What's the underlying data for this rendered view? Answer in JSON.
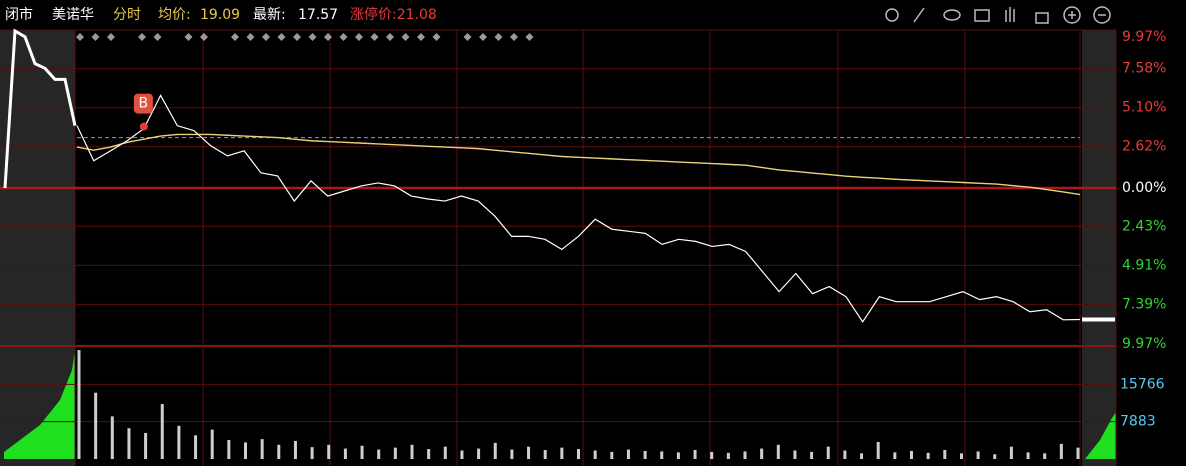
{
  "header": {
    "status": "闭市",
    "name": "美诺华",
    "mode": "分时",
    "avg_label": "均价:",
    "avg_value": 19.09,
    "last_label": "最新:",
    "last_value": 17.57,
    "limit": "涨停价:21.08"
  },
  "chart_data": [
    {
      "type": "line",
      "categories": [
        null,
        null,
        null,
        null,
        null,
        null,
        null,
        null,
        null,
        null,
        null,
        null,
        null,
        null,
        null,
        null,
        null,
        null,
        null,
        null,
        null,
        null,
        null,
        null,
        null,
        null,
        null,
        null,
        null,
        null,
        null,
        null,
        null,
        null,
        null,
        null,
        null,
        null,
        null,
        null,
        null,
        null,
        null,
        null,
        null,
        null,
        null,
        null,
        null,
        null,
        null,
        null,
        null,
        null,
        null,
        null,
        null,
        null,
        null,
        null,
        null
      ],
      "series": [
        {
          "color": "#ffffff",
          "values": [
            3.96,
            1.73,
            2.36,
            3.0,
            3.77,
            5.88,
            3.96,
            3.64,
            2.68,
            2.04,
            2.36,
            0.96,
            0.77,
            -0.83,
            0.45,
            -0.51,
            -0.19,
            0.13,
            0.32,
            0.13,
            -0.51,
            -0.7,
            -0.83,
            -0.51,
            -0.83,
            -1.79,
            -3.07,
            -3.07,
            -3.26,
            -3.9,
            -3.07,
            -1.98,
            -2.62,
            -2.75,
            -2.88,
            -3.58,
            -3.26,
            -3.39,
            -3.71,
            -3.58,
            -4.03,
            -5.3,
            -6.58,
            -5.43,
            -6.71,
            -6.26,
            -6.9,
            -8.5,
            -6.9,
            -7.22,
            -7.22,
            -7.22,
            -6.9,
            -6.58,
            -7.09,
            -6.9,
            -7.22,
            -7.86,
            -7.73,
            -8.37,
            -8.35
          ]
        },
        {
          "color": "#e8d27a",
          "values": [
            2.6,
            2.4,
            2.6,
            2.9,
            3.1,
            3.3,
            3.4,
            3.4,
            3.4,
            3.35,
            3.3,
            3.25,
            3.2,
            3.1,
            3.0,
            2.95,
            2.9,
            2.85,
            2.8,
            2.75,
            2.7,
            2.65,
            2.6,
            2.55,
            2.5,
            2.4,
            2.3,
            2.2,
            2.1,
            2.0,
            1.95,
            1.9,
            1.85,
            1.8,
            1.75,
            1.7,
            1.65,
            1.6,
            1.55,
            1.5,
            1.45,
            1.3,
            1.15,
            1.05,
            0.95,
            0.85,
            0.75,
            0.68,
            0.62,
            0.55,
            0.5,
            0.45,
            0.4,
            0.35,
            0.3,
            0.25,
            0.15,
            0.05,
            -0.1,
            -0.25,
            -0.42
          ]
        }
      ],
      "auction": [
        0,
        9.97,
        9.6,
        7.9,
        7.6,
        6.9,
        6.9,
        3.96
      ],
      "buy_line": 3.2,
      "marker": {
        "label": "B",
        "value": 3.9
      },
      "ylim": [
        -9.97,
        9.97
      ],
      "yticks": [
        {
          "value": 9.97,
          "label": "9.97%"
        },
        {
          "value": 7.58,
          "label": "7.58%"
        },
        {
          "value": 5.1,
          "label": "5.10%"
        },
        {
          "value": 2.62,
          "label": "2.62%"
        },
        {
          "value": 0,
          "label": "0.00%"
        },
        {
          "value": -2.43,
          "label": "2.43%"
        },
        {
          "value": -4.91,
          "label": "4.91%"
        },
        {
          "value": -7.39,
          "label": "7.39%"
        },
        {
          "value": -9.97,
          "label": "9.97%"
        }
      ],
      "up_color": "#e83a3a",
      "down_color": "#2fd52f",
      "zero_color": "#ffffff",
      "grid": true
    },
    {
      "type": "bar",
      "values": [
        23000,
        14000,
        9000,
        6500,
        5500,
        11600,
        7000,
        5000,
        6200,
        4000,
        3500,
        4200,
        3000,
        3800,
        2500,
        3000,
        2200,
        2800,
        2000,
        2400,
        3000,
        2100,
        2600,
        1800,
        2200,
        3400,
        2000,
        2600,
        1900,
        2400,
        2100,
        1800,
        1500,
        2000,
        1700,
        1600,
        1400,
        1900,
        1500,
        1300,
        1600,
        2200,
        3000,
        1800,
        1500,
        2600,
        1800,
        1200,
        3600,
        1400,
        1700,
        1300,
        1900,
        1200,
        1600,
        1000,
        2600,
        1400,
        1200,
        3200,
        2400
      ],
      "color": "#cfcfcf",
      "ylim": [
        0,
        23650
      ],
      "yticks": [
        15766,
        7883
      ],
      "tick_color": "#58c8f0"
    }
  ]
}
